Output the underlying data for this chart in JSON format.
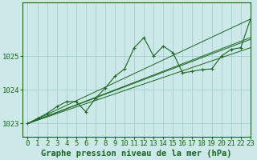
{
  "bg_color": "#cce8e8",
  "grid_color": "#99cccc",
  "line_color": "#1a6620",
  "xlabel": "Graphe pression niveau de la mer (hPa)",
  "xlim": [
    -0.5,
    23
  ],
  "ylim": [
    1022.6,
    1026.6
  ],
  "yticks": [
    1023,
    1024,
    1025
  ],
  "xticks": [
    0,
    1,
    2,
    3,
    4,
    5,
    6,
    7,
    8,
    9,
    10,
    11,
    12,
    13,
    14,
    15,
    16,
    17,
    18,
    19,
    20,
    21,
    22,
    23
  ],
  "data_series": [
    1023.0,
    1023.15,
    1023.3,
    1023.5,
    1023.65,
    1023.65,
    1023.35,
    1023.75,
    1024.05,
    1024.4,
    1024.62,
    1025.25,
    1025.55,
    1025.0,
    1025.3,
    1025.1,
    1024.5,
    1024.55,
    1024.6,
    1024.62,
    1025.0,
    1025.2,
    1025.25,
    1026.1
  ],
  "straight_lines": [
    {
      "x0": 0,
      "y0": 1023.0,
      "x1": 23,
      "y1": 1026.1
    },
    {
      "x0": 0,
      "y0": 1023.0,
      "x1": 23,
      "y1": 1025.55
    },
    {
      "x0": 0,
      "y0": 1023.0,
      "x1": 23,
      "y1": 1025.25
    },
    {
      "x0": 0,
      "y0": 1023.0,
      "x1": 23,
      "y1": 1025.5
    }
  ],
  "xlabel_fontsize": 7.5,
  "tick_fontsize": 6.5
}
